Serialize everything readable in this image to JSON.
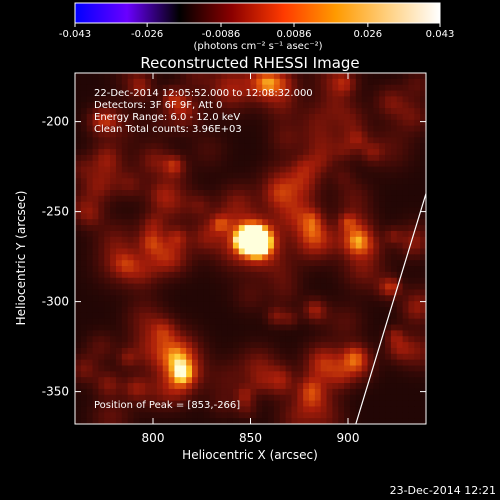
{
  "colorbar": {
    "ticks": [
      "-0.043",
      "-0.026",
      "-0.0086",
      "0.0086",
      "0.026",
      "0.043"
    ],
    "unit_label": "(photons cm⁻² s⁻¹ asec⁻²)",
    "colormap": [
      "#0000ff",
      "#6a00ff",
      "#000000",
      "#8a0000",
      "#ff3a00",
      "#ff9a00",
      "#ffd080",
      "#ffffff"
    ]
  },
  "chart_data": {
    "type": "heatmap",
    "title": "Reconstructed RHESSI Image",
    "xlabel": "Heliocentric X (arcsec)",
    "ylabel": "Heliocentric Y (arcsec)",
    "xlim": [
      760,
      940
    ],
    "ylim": [
      -368,
      -173
    ],
    "xticks": [
      "800",
      "850",
      "900"
    ],
    "yticks": [
      "-200",
      "-250",
      "-300",
      "-350"
    ],
    "zlim": [
      -0.043,
      0.043
    ],
    "peak": {
      "x": 853,
      "y": -266
    },
    "limb_arc": [
      [
        904,
        -368
      ],
      [
        940,
        -240
      ]
    ],
    "info_lines": [
      "22-Dec-2014 12:05:52.000 to 12:08:32.000",
      "Detectors: 3F 6F 9F, Att 0",
      "Energy Range: 6.0 - 12.0 keV",
      "Clean     Total counts: 3.96E+03"
    ],
    "peak_text": "Position of Peak = [853,-266]"
  },
  "footer": {
    "timestamp": "23-Dec-2014 12:21"
  }
}
